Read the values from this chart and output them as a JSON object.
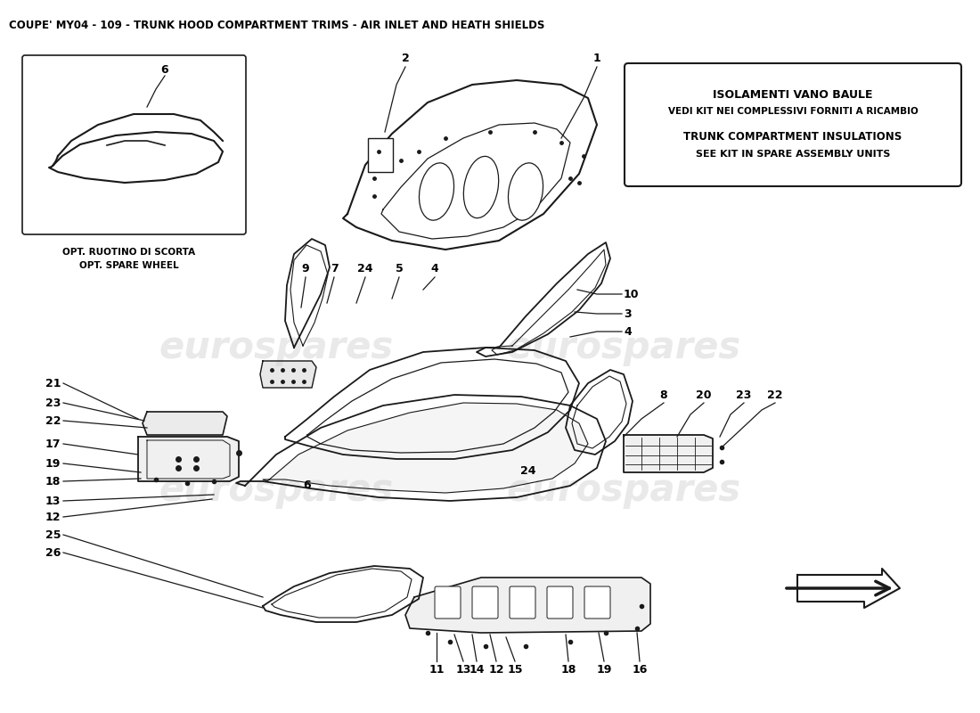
{
  "title": "COUPE' MY04 - 109 - TRUNK HOOD COMPARTMENT TRIMS - AIR INLET AND HEATH SHIELDS",
  "title_fontsize": 8.5,
  "bg_color": "#ffffff",
  "info_box": {
    "italian_line1": "ISOLAMENTI VANO BAULE",
    "italian_line2": "VEDI KIT NEI COMPLESSIVI FORNITI A RICAMBIO",
    "english_line1": "TRUNK COMPARTMENT INSULATIONS",
    "english_line2": "SEE KIT IN SPARE ASSEMBLY UNITS"
  },
  "watermark": "eurospares",
  "line_color": "#1a1a1a",
  "text_color": "#000000",
  "label_fontsize": 9
}
